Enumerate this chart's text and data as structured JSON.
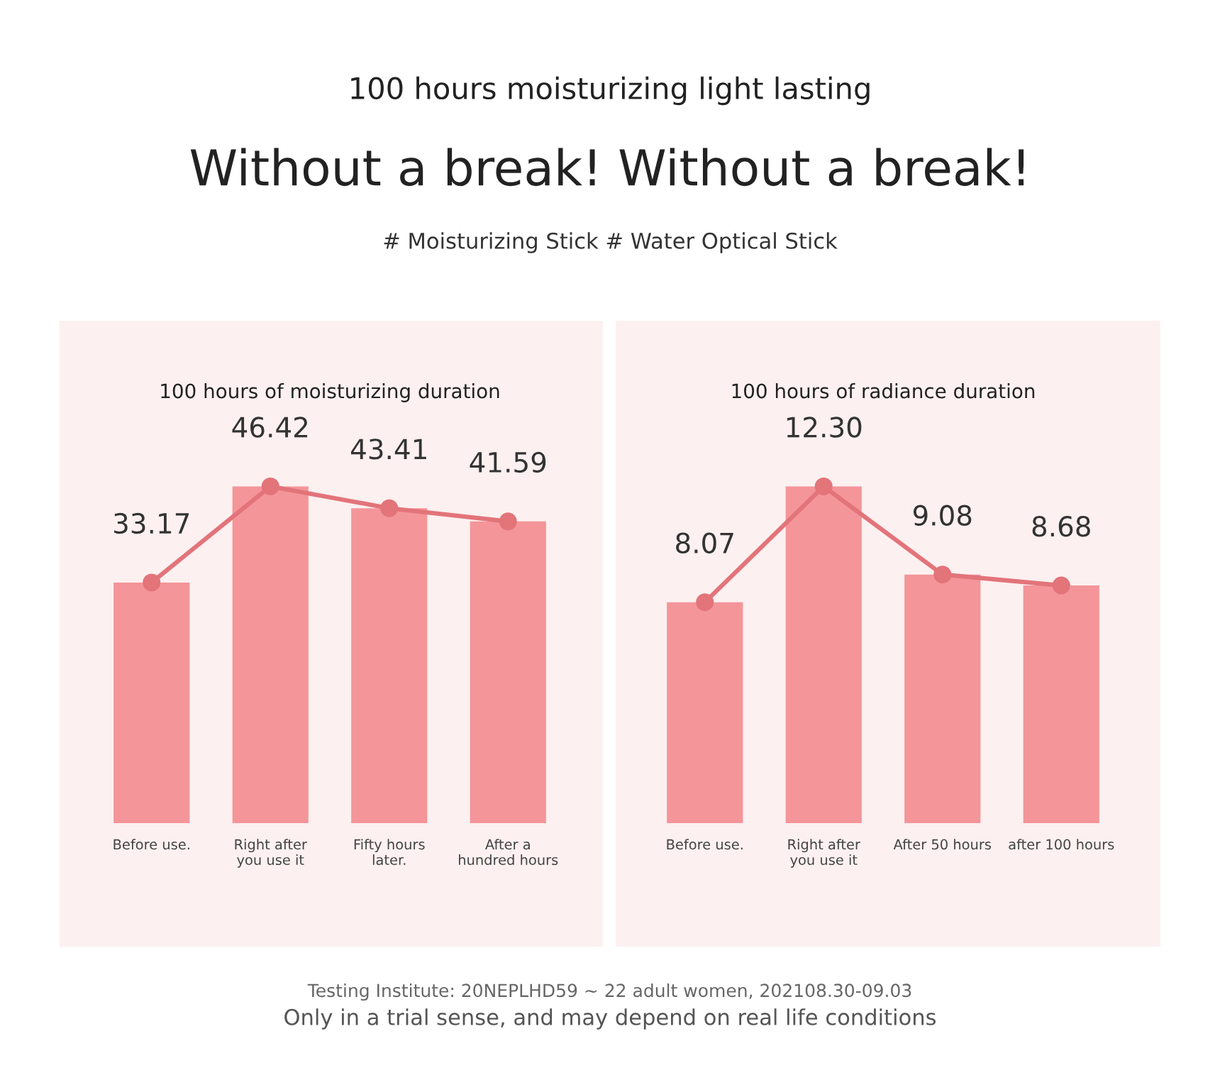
{
  "chart_data": [
    {
      "type": "bar",
      "title": "100 hours of moisturizing duration",
      "categories": [
        "Before use.",
        "Right after you use it",
        "Fifty hours later.",
        "After a hundred hours"
      ],
      "series": [
        {
          "color": "#f4959a",
          "values": [
            33.17,
            46.42,
            43.41,
            41.59
          ]
        },
        {
          "type": "line",
          "color": "#e2747a",
          "values": [
            33.17,
            46.42,
            43.41,
            41.59
          ],
          "value_labels": [
            "33.17",
            "46.42",
            "43.41",
            "41.59"
          ],
          "marker": "circle",
          "line_style": "solid"
        }
      ],
      "tick_labels": "x",
      "annotations": [
        "100 hours moisturizing light lasting",
        "Without a break! Without a break!",
        "# Moisturizing Stick # Water Optical Stick",
        "Testing Institute: 20NEPLHD59 ~ 22 adult women, 202108.30-09.03",
        "Only in a trial sense, and may depend on real life conditions"
      ]
    },
    {
      "type": "bar",
      "title": "100 hours of radiance duration",
      "categories": [
        "Before use.",
        "Right after you use it",
        "After 50 hours",
        "after 100 hours"
      ],
      "series": [
        {
          "color": "#f4959a",
          "values": [
            8.07,
            12.3,
            9.08,
            8.68
          ]
        },
        {
          "type": "line",
          "color": "#e2747a",
          "values": [
            8.07,
            12.3,
            9.08,
            8.68
          ],
          "value_labels": [
            "8.07",
            "12.30",
            "9.08",
            "8.68"
          ],
          "marker": "circle",
          "line_style": "solid"
        }
      ],
      "tick_labels": "x"
    }
  ]
}
